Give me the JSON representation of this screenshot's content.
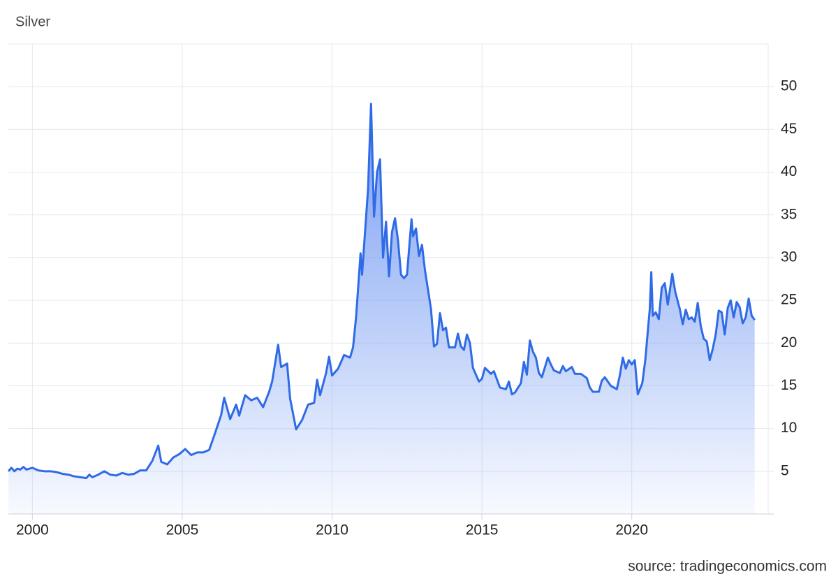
{
  "chart_data": {
    "type": "area",
    "title": "Silver",
    "source": "source: tradingeconomics.com",
    "color": "#2f6be6",
    "grid": true,
    "xlim": [
      1999.2,
      2024.55
    ],
    "xticks": [
      2000,
      2005,
      2010,
      2015,
      2020
    ],
    "ylim": [
      0,
      55
    ],
    "yticks": [
      5,
      10,
      15,
      20,
      25,
      30,
      35,
      40,
      45,
      50
    ],
    "x": [
      1999.2,
      1999.3,
      1999.4,
      1999.5,
      1999.6,
      1999.7,
      1999.8,
      1999.9,
      2000.0,
      2000.2,
      2000.4,
      2000.6,
      2000.8,
      2001.0,
      2001.2,
      2001.4,
      2001.6,
      2001.8,
      2001.9,
      2002.0,
      2002.2,
      2002.4,
      2002.6,
      2002.8,
      2003.0,
      2003.2,
      2003.4,
      2003.6,
      2003.8,
      2004.0,
      2004.2,
      2004.3,
      2004.5,
      2004.7,
      2004.9,
      2005.1,
      2005.3,
      2005.5,
      2005.7,
      2005.9,
      2006.1,
      2006.3,
      2006.4,
      2006.6,
      2006.8,
      2006.9,
      2007.1,
      2007.3,
      2007.5,
      2007.7,
      2007.9,
      2008.0,
      2008.2,
      2008.3,
      2008.5,
      2008.6,
      2008.8,
      2009.0,
      2009.2,
      2009.4,
      2009.5,
      2009.6,
      2009.8,
      2009.9,
      2010.0,
      2010.2,
      2010.4,
      2010.6,
      2010.7,
      2010.8,
      2010.95,
      2011.0,
      2011.2,
      2011.3,
      2011.4,
      2011.5,
      2011.6,
      2011.7,
      2011.8,
      2011.9,
      2012.0,
      2012.1,
      2012.2,
      2012.3,
      2012.4,
      2012.5,
      2012.65,
      2012.7,
      2012.8,
      2012.9,
      2013.0,
      2013.1,
      2013.3,
      2013.4,
      2013.5,
      2013.6,
      2013.7,
      2013.8,
      2013.9,
      2014.1,
      2014.2,
      2014.3,
      2014.4,
      2014.5,
      2014.6,
      2014.7,
      2014.9,
      2015.0,
      2015.1,
      2015.3,
      2015.4,
      2015.6,
      2015.8,
      2015.9,
      2016.0,
      2016.1,
      2016.3,
      2016.4,
      2016.5,
      2016.6,
      2016.7,
      2016.8,
      2016.9,
      2017.0,
      2017.2,
      2017.3,
      2017.4,
      2017.6,
      2017.7,
      2017.8,
      2018.0,
      2018.1,
      2018.3,
      2018.5,
      2018.6,
      2018.7,
      2018.9,
      2019.0,
      2019.1,
      2019.3,
      2019.5,
      2019.6,
      2019.7,
      2019.8,
      2019.9,
      2020.0,
      2020.1,
      2020.2,
      2020.35,
      2020.45,
      2020.6,
      2020.65,
      2020.7,
      2020.8,
      2020.9,
      2021.0,
      2021.1,
      2021.2,
      2021.35,
      2021.45,
      2021.6,
      2021.7,
      2021.8,
      2021.9,
      2022.0,
      2022.1,
      2022.2,
      2022.3,
      2022.4,
      2022.5,
      2022.6,
      2022.7,
      2022.8,
      2022.9,
      2023.0,
      2023.1,
      2023.2,
      2023.3,
      2023.4,
      2023.5,
      2023.6,
      2023.7,
      2023.8,
      2023.9,
      2024.0,
      2024.1
    ],
    "values": [
      5.0,
      5.4,
      5.0,
      5.3,
      5.2,
      5.5,
      5.2,
      5.3,
      5.4,
      5.1,
      5.0,
      5.0,
      4.9,
      4.7,
      4.6,
      4.4,
      4.3,
      4.2,
      4.6,
      4.3,
      4.6,
      5.0,
      4.6,
      4.5,
      4.8,
      4.6,
      4.7,
      5.1,
      5.1,
      6.2,
      8.0,
      6.1,
      5.8,
      6.6,
      7.0,
      7.6,
      6.9,
      7.2,
      7.2,
      7.5,
      9.5,
      11.6,
      13.6,
      11.1,
      12.8,
      11.5,
      13.9,
      13.3,
      13.6,
      12.5,
      14.3,
      15.5,
      19.8,
      17.2,
      17.6,
      13.5,
      9.9,
      11.0,
      12.8,
      13.0,
      15.7,
      13.9,
      16.5,
      18.4,
      16.2,
      17.0,
      18.6,
      18.3,
      19.5,
      23.0,
      30.5,
      28.0,
      38.0,
      48.0,
      34.8,
      40.0,
      41.5,
      30.0,
      34.2,
      27.8,
      33.0,
      34.6,
      32.0,
      28.0,
      27.6,
      28.0,
      34.5,
      32.5,
      33.4,
      30.2,
      31.5,
      28.5,
      24.0,
      19.6,
      19.9,
      23.5,
      21.5,
      21.8,
      19.5,
      19.5,
      21.1,
      19.6,
      19.2,
      21.0,
      20.0,
      17.1,
      15.5,
      15.8,
      17.1,
      16.4,
      16.7,
      14.8,
      14.6,
      15.5,
      14.0,
      14.2,
      15.3,
      17.8,
      16.3,
      20.3,
      19.0,
      18.3,
      16.5,
      16.0,
      18.3,
      17.5,
      16.8,
      16.5,
      17.3,
      16.7,
      17.2,
      16.4,
      16.4,
      15.9,
      14.8,
      14.3,
      14.3,
      15.6,
      16.0,
      15.0,
      14.6,
      16.2,
      18.3,
      17.0,
      18.0,
      17.5,
      18.0,
      14.0,
      15.3,
      18.0,
      24.0,
      28.3,
      23.2,
      23.6,
      22.8,
      26.5,
      27.0,
      24.5,
      28.1,
      26.0,
      24.0,
      22.2,
      23.9,
      22.8,
      23.0,
      22.5,
      24.7,
      22.0,
      20.5,
      20.2,
      18.0,
      19.3,
      21.0,
      23.8,
      23.6,
      21.0,
      24.1,
      25.0,
      23.0,
      24.8,
      24.2,
      22.3,
      23.0,
      25.2,
      23.2,
      22.7
    ]
  }
}
